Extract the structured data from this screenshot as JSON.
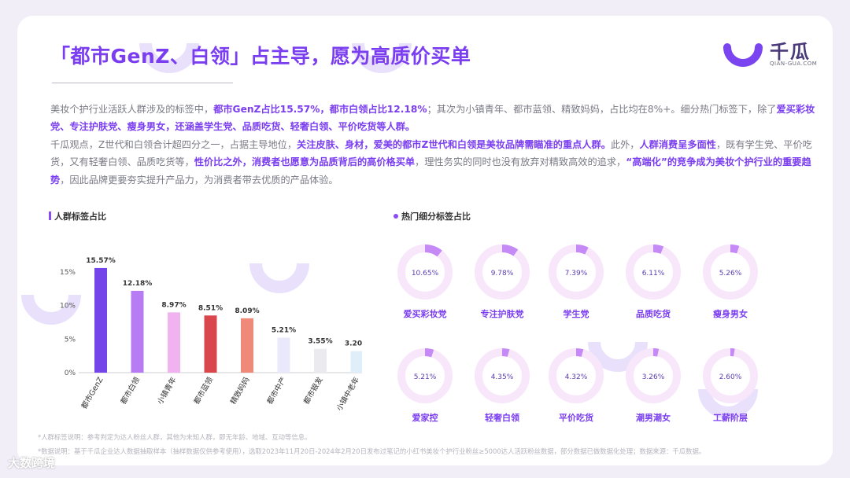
{
  "header": {
    "title": "「都市GenZ、白领」占主导，愿为高质价买单"
  },
  "logo": {
    "name": "千瓜",
    "url": "QIAN-GUA.COM"
  },
  "paragraph1": {
    "t1": "美妆个护行业活跃人群涉及的标签中，",
    "h1": "都市GenZ占比15.57%，都市白领占比12.18%",
    "t2": "；其次为小镇青年、都市蓝领、精致妈妈，占比均在8%+。细分热门标签下，除了",
    "h2": "爱买彩妆党、专注护肤党、瘦身男女，还涵盖学生党、品质吃货、轻奢白领、平价吃货等人群。"
  },
  "paragraph2": {
    "t1": "千瓜观点，Z世代和白领合计超四分之一，占据主导地位，",
    "h1": "关注皮肤、身材，爱美的都市Z世代和白领是美妆品牌需瞄准的重点人群。",
    "t2": "此外，",
    "h2": "人群消费呈多面性",
    "t3": "，既有学生党、平价吃货，又有轻奢白领、品质吃货等，",
    "h3": "性价比之外，消费者也愿意为品质背后的高价格买单",
    "t4": "，理性务实的同时也没有放弃对精致高效的追求，",
    "h4": "“高端化”的竞争成为美妆个护行业的重要趋势",
    "t5": "，因此品牌更要夯实提升产品力，为消费者带去优质的产品体验。"
  },
  "panels": {
    "left_label": "人群标签占比",
    "right_label": "热门细分标签占比"
  },
  "chart_data": [
    {
      "type": "bar",
      "title": "人群标签占比",
      "categories": [
        "都市GenZ",
        "都市白领",
        "小镇青年",
        "都市蓝领",
        "精致妈妈",
        "都市中产",
        "都市银发",
        "小镇中老年"
      ],
      "values": [
        15.57,
        12.18,
        8.97,
        8.51,
        8.09,
        5.21,
        3.55,
        3.2
      ],
      "value_labels": [
        "15.57%",
        "12.18%",
        "8.97%",
        "8.51%",
        "8.09%",
        "5.21%",
        "3.55%",
        "3.20%"
      ],
      "colors": [
        "#7445e8",
        "#b77cf3",
        "#f1b3ef",
        "#d9464c",
        "#ef8a7a",
        "#eae8fb",
        "#ebeaee",
        "#e0eefa"
      ],
      "yticks": [
        "0%",
        "5%",
        "10%",
        "15%"
      ],
      "ylim": [
        0,
        16.5
      ],
      "grid": false
    },
    {
      "type": "pie",
      "title": "热门细分标签占比",
      "style": "donut",
      "categories": [
        "爱买彩妆党",
        "专注护肤党",
        "学生党",
        "品质吃货",
        "瘦身男女",
        "爱家控",
        "轻奢白领",
        "平价吃货",
        "潮男潮女",
        "工薪阶层"
      ],
      "values": [
        10.65,
        9.78,
        7.39,
        6.11,
        5.26,
        5.21,
        4.35,
        4.32,
        3.26,
        2.6
      ],
      "value_labels": [
        "10.65%",
        "9.78%",
        "7.39%",
        "6.11%",
        "5.26%",
        "5.21%",
        "4.35%",
        "4.32%",
        "3.26%",
        "2.60%"
      ],
      "colors": {
        "fill": "#c58af6",
        "track": "#f8e6fb",
        "label": "#5a3db0"
      }
    }
  ],
  "footnotes": {
    "line1": "*人群标签说明：参考判定为达人粉丝人群，其他为未知人群，即无年龄、地域、互动等信息。",
    "line2": "*数据说明：基于千瓜企业达人数据抽取样本（抽样数据仅供参考使用），选取2023年11月20日-2024年2月20日发布过笔记的小红书美妆个护行业粉丝≥5000达人活跃粉丝数据，部分数据已做数据化处理；数据来源：千瓜数据。"
  },
  "brand": {
    "text": "大数跨境"
  }
}
